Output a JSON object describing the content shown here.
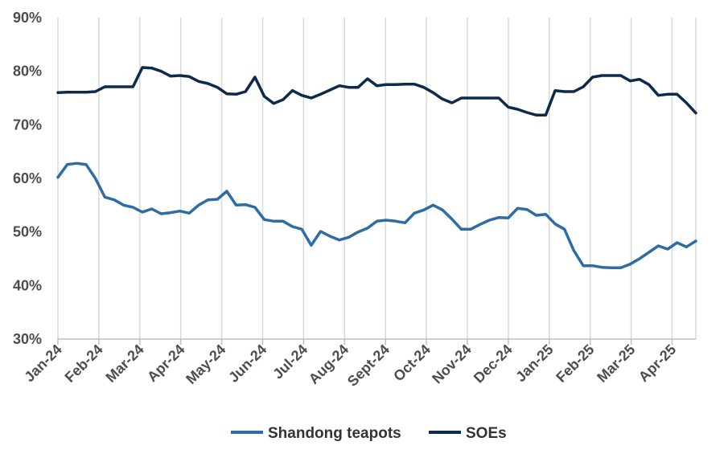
{
  "chart_data": {
    "type": "line",
    "title": "",
    "xlabel": "",
    "ylabel": "",
    "ylim": [
      0.3,
      0.9
    ],
    "y_tick_labels": [
      "30%",
      "40%",
      "50%",
      "60%",
      "70%",
      "80%",
      "90%"
    ],
    "y_tick_values": [
      0.3,
      0.4,
      0.5,
      0.6,
      0.7,
      0.8,
      0.9
    ],
    "x_tick_labels": [
      "Jan-24",
      "Feb-24",
      "Mar-24",
      "Apr-24",
      "May-24",
      "Jun-24",
      "Jul-24",
      "Aug-24",
      "Sept-24",
      "Oct-24",
      "Nov-24",
      "Dec-24",
      "Jan-25",
      "Feb-25",
      "Mar-25",
      "Apr-25"
    ],
    "grid": "vertical",
    "legend_position": "bottom",
    "series": [
      {
        "name": "Shandong teapots",
        "color": "#2e6da4",
        "values": [
          0.602,
          0.626,
          0.628,
          0.626,
          0.6,
          0.565,
          0.56,
          0.55,
          0.546,
          0.537,
          0.543,
          0.534,
          0.536,
          0.539,
          0.535,
          0.55,
          0.56,
          0.561,
          0.576,
          0.55,
          0.551,
          0.546,
          0.523,
          0.52,
          0.52,
          0.51,
          0.505,
          0.475,
          0.501,
          0.492,
          0.485,
          0.49,
          0.5,
          0.507,
          0.52,
          0.522,
          0.52,
          0.517,
          0.535,
          0.541,
          0.55,
          0.541,
          0.524,
          0.505,
          0.505,
          0.514,
          0.522,
          0.527,
          0.526,
          0.544,
          0.542,
          0.531,
          0.533,
          0.515,
          0.505,
          0.465,
          0.437,
          0.437,
          0.434,
          0.433,
          0.433,
          0.44,
          0.45,
          0.462,
          0.474,
          0.468,
          0.48,
          0.472,
          0.483
        ]
      },
      {
        "name": "SOEs",
        "color": "#0e2a4a",
        "values": [
          0.76,
          0.761,
          0.761,
          0.761,
          0.762,
          0.771,
          0.771,
          0.771,
          0.771,
          0.807,
          0.806,
          0.8,
          0.791,
          0.792,
          0.79,
          0.781,
          0.777,
          0.77,
          0.758,
          0.757,
          0.762,
          0.789,
          0.753,
          0.74,
          0.747,
          0.764,
          0.755,
          0.75,
          0.757,
          0.765,
          0.773,
          0.77,
          0.77,
          0.786,
          0.773,
          0.775,
          0.775,
          0.776,
          0.776,
          0.77,
          0.76,
          0.748,
          0.741,
          0.75,
          0.75,
          0.75,
          0.75,
          0.75,
          0.733,
          0.729,
          0.723,
          0.718,
          0.718,
          0.764,
          0.762,
          0.762,
          0.771,
          0.789,
          0.792,
          0.792,
          0.792,
          0.782,
          0.785,
          0.775,
          0.755,
          0.757,
          0.757,
          0.741,
          0.722
        ]
      }
    ]
  }
}
